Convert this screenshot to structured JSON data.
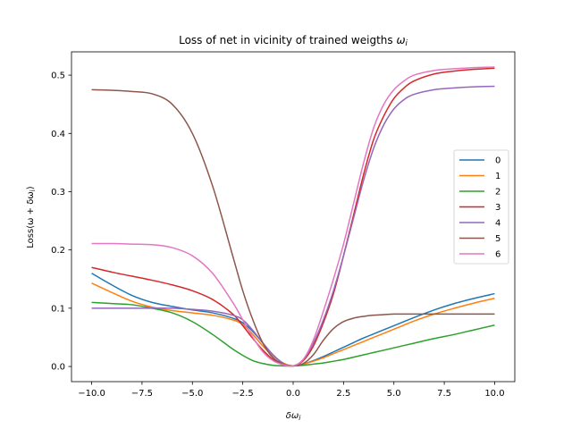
{
  "chart_data": {
    "type": "line",
    "title": "Loss of net in vicinity of trained weigths ωᵢ",
    "title_main": "Loss of net in vicinity of trained weigths ",
    "title_symbol": "ω",
    "title_sub": "i",
    "xlabel": "δωᵢ",
    "xlabel_symbol": "δω",
    "xlabel_sub": "i",
    "ylabel": "Loss(ω + δωᵢ)",
    "ylabel_main": "Loss(ω + δω",
    "ylabel_sub": "i",
    "ylabel_tail": ")",
    "xlim": [
      -11,
      11
    ],
    "ylim": [
      -0.026,
      0.54
    ],
    "xticks": [
      -10,
      -7.5,
      -5,
      -2.5,
      0,
      2.5,
      5,
      7.5,
      10
    ],
    "xtick_labels": [
      "−10.0",
      "−7.5",
      "−5.0",
      "−2.5",
      "0.0",
      "2.5",
      "5.0",
      "7.5",
      "10.0"
    ],
    "yticks": [
      0,
      0.1,
      0.2,
      0.3,
      0.4,
      0.5
    ],
    "ytick_labels": [
      "0.0",
      "0.1",
      "0.2",
      "0.3",
      "0.4",
      "0.5"
    ],
    "grid": false,
    "legend_position": "center-right",
    "x": [
      -10,
      -9,
      -8,
      -7,
      -6,
      -5,
      -4,
      -3,
      -2.5,
      -2,
      -1.5,
      -1,
      -0.5,
      0,
      0.5,
      1,
      1.5,
      2,
      2.5,
      3,
      3.5,
      4,
      4.5,
      5,
      5.5,
      6,
      7,
      8,
      9,
      10
    ],
    "series": [
      {
        "name": "0",
        "color": "#1f77b4",
        "values": [
          0.16,
          0.14,
          0.122,
          0.11,
          0.103,
          0.097,
          0.092,
          0.083,
          0.075,
          0.06,
          0.04,
          0.02,
          0.006,
          0.001,
          0.004,
          0.01,
          0.017,
          0.025,
          0.033,
          0.041,
          0.049,
          0.056,
          0.063,
          0.07,
          0.077,
          0.084,
          0.097,
          0.108,
          0.117,
          0.125
        ]
      },
      {
        "name": "1",
        "color": "#ff7f0e",
        "values": [
          0.143,
          0.127,
          0.112,
          0.102,
          0.096,
          0.092,
          0.088,
          0.08,
          0.072,
          0.055,
          0.035,
          0.018,
          0.006,
          0.001,
          0.004,
          0.009,
          0.015,
          0.022,
          0.029,
          0.036,
          0.043,
          0.05,
          0.057,
          0.064,
          0.071,
          0.078,
          0.09,
          0.1,
          0.109,
          0.117
        ]
      },
      {
        "name": "2",
        "color": "#2ca02c",
        "values": [
          0.11,
          0.108,
          0.106,
          0.1,
          0.092,
          0.077,
          0.055,
          0.03,
          0.019,
          0.01,
          0.005,
          0.002,
          0.001,
          0.001,
          0.002,
          0.004,
          0.006,
          0.009,
          0.012,
          0.016,
          0.02,
          0.024,
          0.028,
          0.032,
          0.036,
          0.04,
          0.048,
          0.055,
          0.063,
          0.071
        ]
      },
      {
        "name": "3",
        "color": "#d62728",
        "values": [
          0.17,
          0.162,
          0.155,
          0.148,
          0.14,
          0.13,
          0.115,
          0.09,
          0.07,
          0.048,
          0.028,
          0.012,
          0.003,
          0.001,
          0.01,
          0.035,
          0.075,
          0.125,
          0.19,
          0.26,
          0.33,
          0.39,
          0.43,
          0.46,
          0.478,
          0.49,
          0.502,
          0.507,
          0.51,
          0.512
        ]
      },
      {
        "name": "4",
        "color": "#9467bd",
        "values": [
          0.1,
          0.1,
          0.1,
          0.1,
          0.1,
          0.098,
          0.095,
          0.088,
          0.08,
          0.062,
          0.04,
          0.02,
          0.005,
          0.001,
          0.012,
          0.04,
          0.08,
          0.13,
          0.19,
          0.255,
          0.32,
          0.375,
          0.415,
          0.442,
          0.458,
          0.467,
          0.475,
          0.478,
          0.48,
          0.481
        ]
      },
      {
        "name": "5",
        "color": "#8c564b",
        "values": [
          0.475,
          0.474,
          0.472,
          0.468,
          0.45,
          0.4,
          0.31,
          0.19,
          0.13,
          0.08,
          0.04,
          0.015,
          0.004,
          0.001,
          0.005,
          0.02,
          0.045,
          0.065,
          0.077,
          0.083,
          0.086,
          0.088,
          0.089,
          0.09,
          0.09,
          0.09,
          0.09,
          0.09,
          0.09,
          0.09
        ]
      },
      {
        "name": "6",
        "color": "#e377c2",
        "values": [
          0.211,
          0.211,
          0.21,
          0.209,
          0.204,
          0.19,
          0.16,
          0.11,
          0.08,
          0.05,
          0.025,
          0.01,
          0.003,
          0.001,
          0.012,
          0.045,
          0.095,
          0.15,
          0.21,
          0.28,
          0.35,
          0.41,
          0.45,
          0.475,
          0.49,
          0.5,
          0.508,
          0.511,
          0.513,
          0.514
        ]
      }
    ]
  }
}
